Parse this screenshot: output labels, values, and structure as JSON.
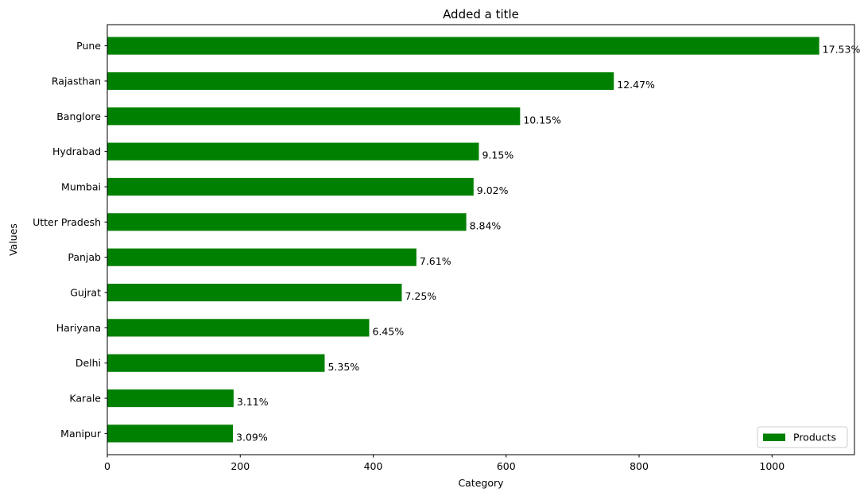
{
  "chart_data": {
    "type": "bar",
    "orientation": "horizontal",
    "title": "Added a title",
    "xlabel": "Category",
    "ylabel": "Values",
    "categories": [
      "Pune",
      "Rajasthan",
      "Banglore",
      "Hydrabad",
      "Mumbai",
      "Utter Pradesh",
      "Panjab",
      "Gujrat",
      "Hariyana",
      "Delhi",
      "Karale",
      "Manipur"
    ],
    "series": [
      {
        "name": "Products",
        "color": "#008000",
        "values": [
          1071,
          762,
          621,
          559,
          551,
          540,
          465,
          443,
          394,
          327,
          190,
          189
        ],
        "labels": [
          "17.53%",
          "12.47%",
          "10.15%",
          "9.15%",
          "9.02%",
          "8.84%",
          "7.61%",
          "7.25%",
          "6.45%",
          "5.35%",
          "3.11%",
          "3.09%"
        ]
      }
    ],
    "xlim": [
      0,
      1124
    ],
    "xticks": [
      0,
      200,
      400,
      600,
      800,
      1000
    ],
    "grid": false,
    "legend_position": "bottom-right"
  }
}
